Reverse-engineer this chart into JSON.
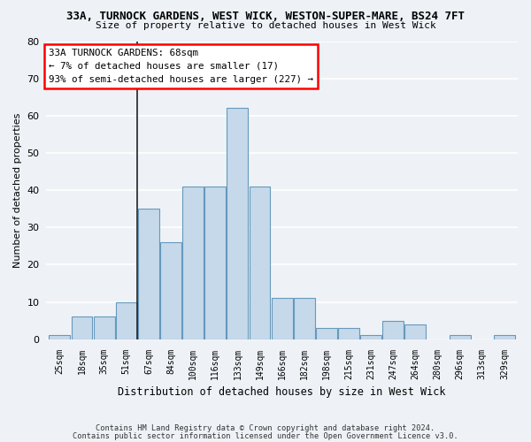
{
  "title_line1": "33A, TURNOCK GARDENS, WEST WICK, WESTON-SUPER-MARE, BS24 7FT",
  "title_line2": "Size of property relative to detached houses in West Wick",
  "xlabel": "Distribution of detached houses by size in West Wick",
  "ylabel": "Number of detached properties",
  "bin_labels": [
    "25sqm",
    "18sqm",
    "35sqm",
    "51sqm",
    "67sqm",
    "84sqm",
    "100sqm",
    "116sqm",
    "133sqm",
    "149sqm",
    "166sqm",
    "182sqm",
    "198sqm",
    "215sqm",
    "231sqm",
    "247sqm",
    "264sqm",
    "280sqm",
    "296sqm",
    "313sqm",
    "329sqm"
  ],
  "bar_values": [
    1,
    6,
    6,
    10,
    35,
    26,
    41,
    41,
    62,
    41,
    11,
    11,
    3,
    3,
    1,
    5,
    4,
    0,
    1,
    0,
    1
  ],
  "bar_color": "#c5d9eb",
  "bar_edge_color": "#6699bb",
  "vline_x": 4,
  "ylim": [
    0,
    80
  ],
  "yticks": [
    0,
    10,
    20,
    30,
    40,
    50,
    60,
    70,
    80
  ],
  "annotation_box_text": "33A TURNOCK GARDENS: 68sqm\n← 7% of detached houses are smaller (17)\n93% of semi-detached houses are larger (227) →",
  "footer_line1": "Contains HM Land Registry data © Crown copyright and database right 2024.",
  "footer_line2": "Contains public sector information licensed under the Open Government Licence v3.0.",
  "background_color": "#eef2f7",
  "grid_color": "#ffffff"
}
